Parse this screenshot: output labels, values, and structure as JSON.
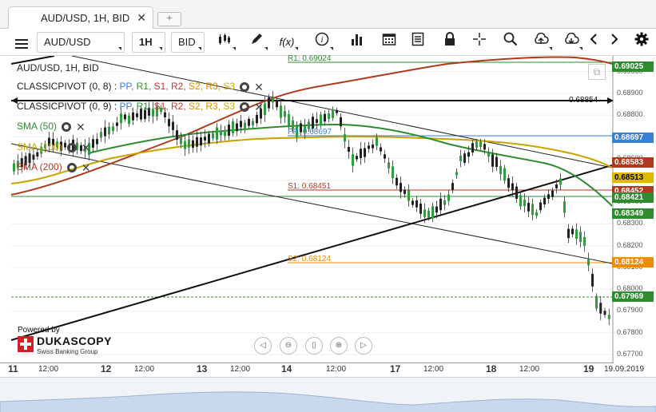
{
  "tab": {
    "title": "AUD/USD, 1H, BID",
    "close": "✕",
    "new_tab": "+"
  },
  "toolbar": {
    "instrument": "AUD/USD",
    "period": "1H",
    "side": "BID",
    "fx_label": "f(x)",
    "info_label": "i"
  },
  "legend": {
    "title": "AUD/USD, 1H, BID",
    "pivot1": {
      "name": "CLASSICPIVOT (0, 8)",
      "sep": " : "
    },
    "pivot2": {
      "name": "CLASSICPIVOT (0, 9)",
      "sep": " : "
    },
    "levels": [
      {
        "text": "PP,",
        "color": "#3a7fd5"
      },
      {
        "text": " R1,",
        "color": "#2f8f2f"
      },
      {
        "text": " S1,",
        "color": "#c0392b"
      },
      {
        "text": " R2,",
        "color": "#c0392b"
      },
      {
        "text": " S2,",
        "color": "#e08a00"
      },
      {
        "text": " R3,",
        "color": "#e08a00"
      },
      {
        "text": " S3",
        "color": "#d4a900"
      }
    ],
    "sma50": {
      "label": "SMA (50)",
      "color": "#2e8b2e"
    },
    "sma100": {
      "label": "SMA (100)",
      "color": "#c9a400"
    },
    "sma200": {
      "label": "SMA (200)",
      "color": "#b03a1e"
    }
  },
  "annotations": {
    "r1": "R1: 0.69024",
    "pp": "PP: 0.68697",
    "s1": "S1: 0.68451",
    "s2": "S2: 0.68124",
    "hline_value": "0.68854"
  },
  "price_tags": [
    {
      "value": "0.69025",
      "bg": "#2e8b2e",
      "color": "#fff",
      "price": 0.69025
    },
    {
      "value": "0.68697",
      "bg": "#3a7fd5",
      "color": "#fff",
      "price": 0.68697
    },
    {
      "value": "0.68583",
      "bg": "#b03a1e",
      "color": "#fff",
      "price": 0.68583
    },
    {
      "value": "0.68513",
      "bg": "#e0b800",
      "color": "#000",
      "price": 0.68513
    },
    {
      "value": "0.68452",
      "bg": "#b03a1e",
      "color": "#fff",
      "price": 0.68452
    },
    {
      "value": "0.68421",
      "bg": "#2e8b2e",
      "color": "#fff",
      "price": 0.68421
    },
    {
      "value": "0.68349",
      "bg": "#2e8b2e",
      "color": "#fff",
      "price": 0.68349
    },
    {
      "value": "0.68124",
      "bg": "#f08c00",
      "color": "#fff",
      "price": 0.68124
    },
    {
      "value": "0.67969",
      "bg": "#2e8b2e",
      "color": "#fff",
      "price": 0.67969
    }
  ],
  "price_axis": [
    "0.69000",
    "0.68900",
    "0.68800",
    "0.68700",
    "0.68600",
    "0.68500",
    "0.68400",
    "0.68300",
    "0.68200",
    "0.68100",
    "0.68000",
    "0.67900",
    "0.67800",
    "0.67700"
  ],
  "x_axis": [
    {
      "label": "11",
      "day": true
    },
    {
      "label": "12:00",
      "day": false
    },
    {
      "label": "12",
      "day": true
    },
    {
      "label": "12:00",
      "day": false
    },
    {
      "label": "13",
      "day": true
    },
    {
      "label": "12:00",
      "day": false
    },
    {
      "label": "14",
      "day": true
    },
    {
      "label": "12:00",
      "day": false
    },
    {
      "label": "17",
      "day": true
    },
    {
      "label": "12:00",
      "day": false
    },
    {
      "label": "18",
      "day": true
    },
    {
      "label": "12:00",
      "day": false
    },
    {
      "label": "19",
      "day": true
    },
    {
      "label": "19.09.2019",
      "day": false
    }
  ],
  "branding": {
    "powered": "Powered by",
    "name": "DUKASCOPY",
    "sub": "Swiss Banking Group"
  },
  "icons": {
    "menu": "hamburger-icon",
    "candles": "candles-icon",
    "draw": "pencil-icon",
    "indicators": "function-icon",
    "info": "info-icon",
    "volume": "bars-icon",
    "calendar": "calendar-icon",
    "list": "list-icon",
    "lock": "lock-icon",
    "crosshair": "crosshair-icon",
    "zoom": "zoom-icon",
    "upload": "cloud-upload-icon",
    "download": "cloud-download-icon",
    "prev": "chevron-left-icon",
    "next": "chevron-right-icon",
    "settings": "gear-icon"
  }
}
